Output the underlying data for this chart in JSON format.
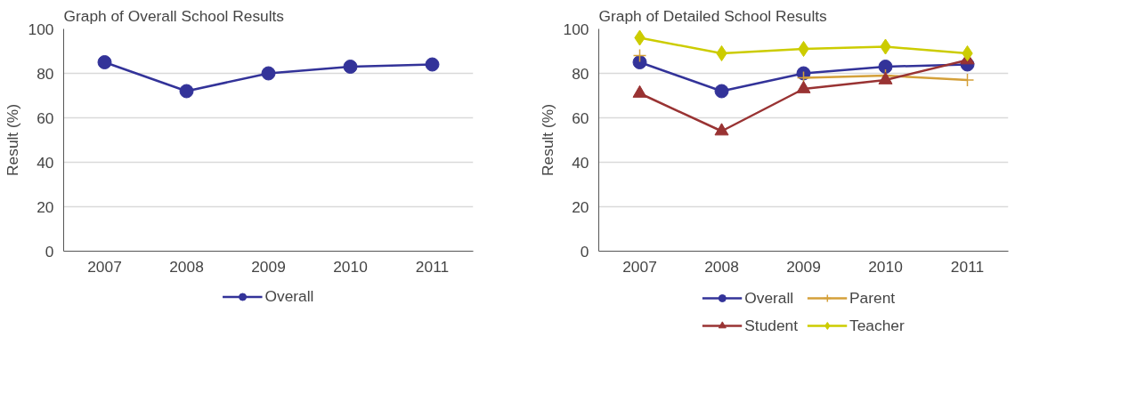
{
  "chart_data": [
    {
      "type": "line",
      "title": "Graph of Overall School Results",
      "ylabel": "Result (%)",
      "categories": [
        "2007",
        "2008",
        "2009",
        "2010",
        "2011"
      ],
      "ylim": [
        0,
        100
      ],
      "yticks": [
        0,
        20,
        40,
        60,
        80,
        100
      ],
      "grid": "y",
      "legend": "bottom",
      "marker": "circle",
      "series": [
        {
          "name": "Overall",
          "color": "#333399",
          "values": [
            85,
            72,
            80,
            83,
            84
          ]
        }
      ]
    },
    {
      "type": "line",
      "title": "Graph of Detailed School Results",
      "ylabel": "Result (%)",
      "categories": [
        "2007",
        "2008",
        "2009",
        "2010",
        "2011"
      ],
      "ylim": [
        0,
        100
      ],
      "yticks": [
        0,
        20,
        40,
        60,
        80,
        100
      ],
      "grid": "y",
      "legend": "bottom",
      "series": [
        {
          "name": "Overall",
          "color": "#333399",
          "marker": "circle",
          "values": [
            85,
            72,
            80,
            83,
            84
          ]
        },
        {
          "name": "Parent",
          "color": "#d4a03a",
          "marker": "cross",
          "values": [
            88,
            null,
            78,
            79,
            77
          ]
        },
        {
          "name": "Student",
          "color": "#993333",
          "marker": "triangle",
          "values": [
            71,
            54,
            73,
            77,
            86
          ]
        },
        {
          "name": "Teacher",
          "color": "#cccc00",
          "marker": "diamond",
          "values": [
            96,
            89,
            91,
            92,
            89
          ]
        }
      ]
    }
  ]
}
